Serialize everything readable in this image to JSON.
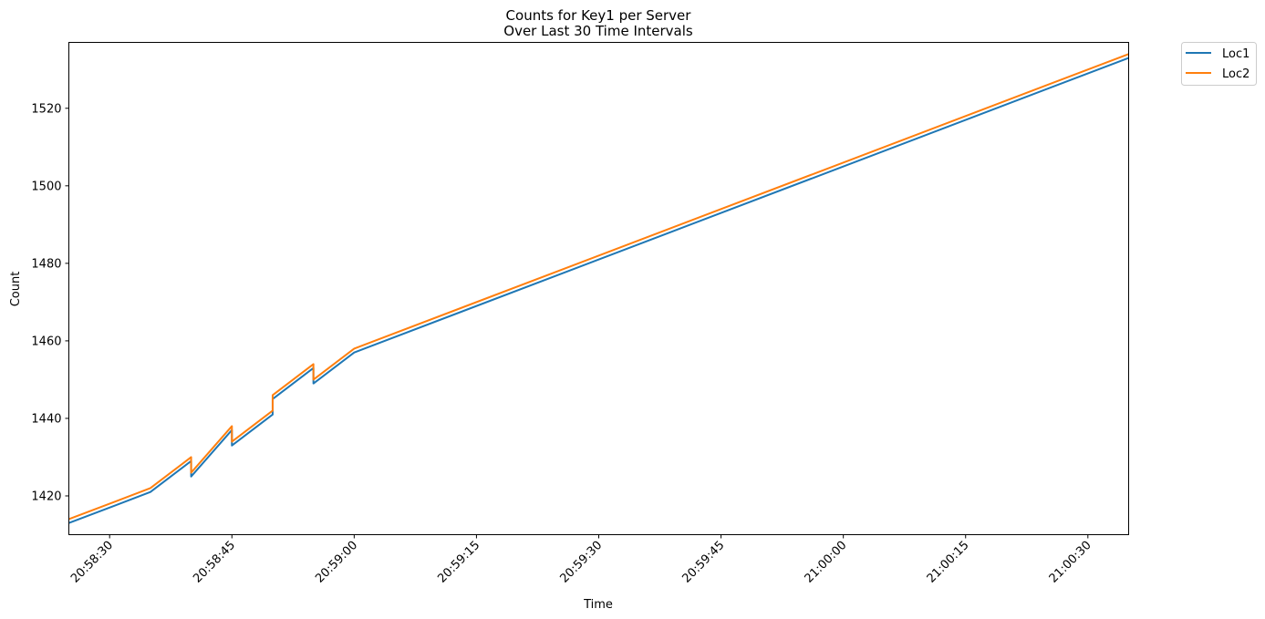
{
  "chart_data": {
    "type": "line",
    "title": "Counts for Key1 per Server",
    "subtitle": "Over Last 30 Time Intervals",
    "xlabel": "Time",
    "ylabel": "Count",
    "xlim": [
      "20:58:25",
      "21:00:35"
    ],
    "ylim": [
      1410,
      1537
    ],
    "xticks": [
      "20:58:30",
      "20:58:45",
      "20:59:00",
      "20:59:15",
      "20:59:30",
      "20:59:45",
      "21:00:00",
      "21:00:15",
      "21:00:30"
    ],
    "yticks": [
      1420,
      1440,
      1460,
      1480,
      1500,
      1520
    ],
    "grid": false,
    "legend_position": "outside top-right",
    "series": [
      {
        "name": "Loc1",
        "color": "#1f77b4",
        "points": [
          [
            "20:58:25",
            1413
          ],
          [
            "20:58:35",
            1421
          ],
          [
            "20:58:40",
            1429
          ],
          [
            "20:58:40",
            1425
          ],
          [
            "20:58:45",
            1437
          ],
          [
            "20:58:45",
            1433
          ],
          [
            "20:58:50",
            1441
          ],
          [
            "20:58:50",
            1445
          ],
          [
            "20:58:55",
            1453
          ],
          [
            "20:58:55",
            1449
          ],
          [
            "20:59:00",
            1457
          ],
          [
            "21:00:35",
            1533
          ]
        ]
      },
      {
        "name": "Loc2",
        "color": "#ff7f0e",
        "points": [
          [
            "20:58:25",
            1414
          ],
          [
            "20:58:35",
            1422
          ],
          [
            "20:58:40",
            1430
          ],
          [
            "20:58:40",
            1426
          ],
          [
            "20:58:45",
            1438
          ],
          [
            "20:58:45",
            1434
          ],
          [
            "20:58:50",
            1442
          ],
          [
            "20:58:50",
            1446
          ],
          [
            "20:58:55",
            1454
          ],
          [
            "20:58:55",
            1450
          ],
          [
            "20:59:00",
            1458
          ],
          [
            "21:00:35",
            1534
          ]
        ]
      }
    ]
  }
}
